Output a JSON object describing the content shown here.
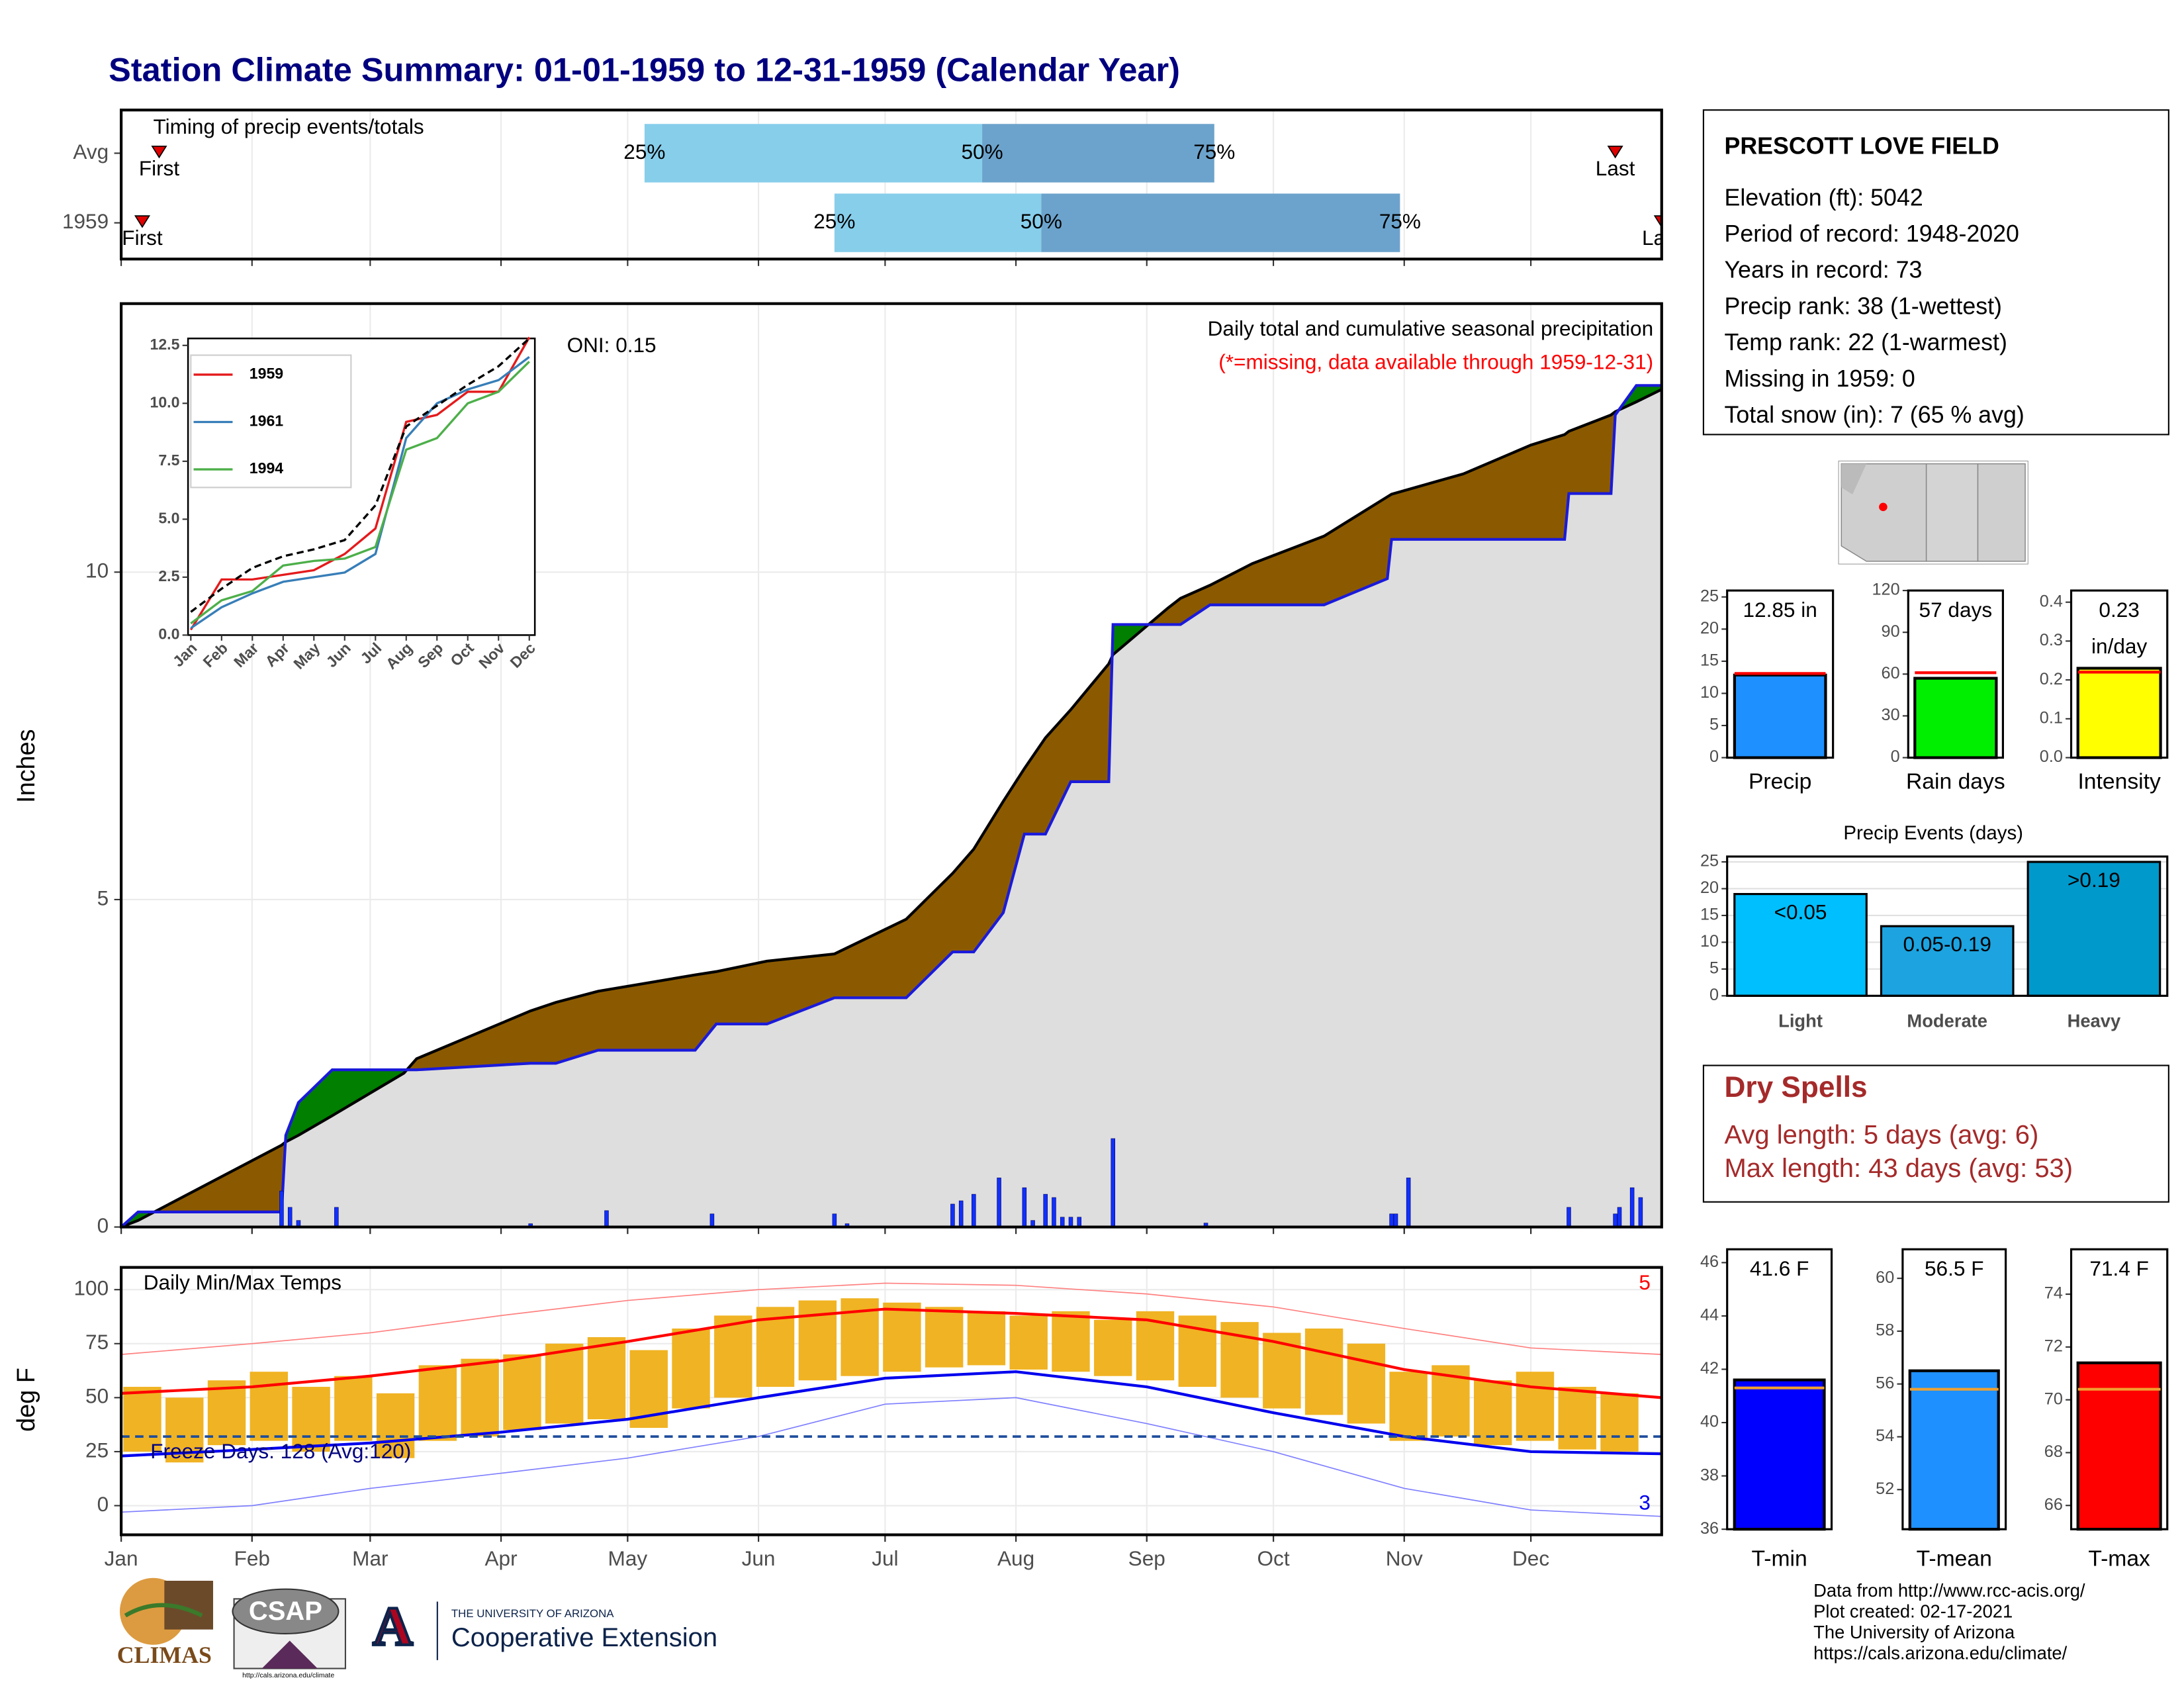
{
  "title": "Station Climate Summary: 01-01-1959 to 12-31-1959 (Calendar Year)",
  "station": {
    "name": "PRESCOTT LOVE FIELD",
    "lines": [
      "Elevation (ft): 5042",
      "Period of record: 1948-2020",
      "Years in record: 73",
      "Precip rank: 38 (1-wettest)",
      "Temp rank: 22 (1-warmest)",
      "Missing in 1959: 0",
      "Total snow (in): 7 (65 % avg)"
    ]
  },
  "dry_spells": {
    "title": "Dry Spells",
    "lines": [
      "Avg length: 5 days (avg: 6)",
      "Max length: 43 days (avg: 53)"
    ]
  },
  "footer": [
    "Data from http://www.rcc-acis.org/",
    "Plot created: 02-17-2021",
    "The University of Arizona",
    "https://cals.arizona.edu/climate/"
  ],
  "logos": {
    "climas": "CLIMAS",
    "csap": "CSAP",
    "csap_url": "http://cals.arizona.edu/climate",
    "arizona_mark": "A",
    "university": "THE UNIVERSITY OF ARIZONA",
    "extension": "Cooperative Extension"
  },
  "chart_data": [
    {
      "type": "timing",
      "title": "Timing of precip events/totals",
      "xlim": [
        0,
        365
      ],
      "colors": [
        "#87ceeb",
        "#6ca3cc"
      ],
      "marker_color": "#e00000",
      "labels": {
        "first": "First",
        "last": "Last",
        "p25": "25%",
        "p50": "50%",
        "p75": "75%"
      },
      "rows": [
        {
          "name": "Avg",
          "first": 9,
          "last": 354,
          "p25": 124,
          "p50": 204,
          "p75": 259
        },
        {
          "name": "1959",
          "first": 5,
          "last": 365,
          "p25": 169,
          "p50": 218,
          "p75": 303
        }
      ]
    },
    {
      "type": "area",
      "annotation_left": "ONI: 0.15",
      "annotation": "Daily total and cumulative seasonal precipitation",
      "note": "(*=missing, data available through 1959-12-31)",
      "ylabel": "Inches",
      "xlim": [
        0,
        365
      ],
      "ylim": [
        0,
        14.1
      ],
      "yticks": [
        0,
        5,
        10
      ],
      "grid": true,
      "fill_below": "#8b5a00",
      "fill_above": "#007f00",
      "fill_base": "#dedede",
      "x": [
        0,
        4,
        38,
        39,
        42,
        50,
        67,
        70,
        97,
        103,
        113,
        136,
        141,
        153,
        169,
        186,
        197,
        202,
        209,
        214,
        219,
        225,
        234,
        235,
        248,
        251,
        258,
        268,
        285,
        300,
        301,
        318,
        334,
        342,
        343,
        353,
        354,
        359,
        365
      ],
      "series": [
        {
          "color": "#000000",
          "values": [
            0,
            0.1,
            1.25,
            1.3,
            1.4,
            1.7,
            2.35,
            2.57,
            3.3,
            3.43,
            3.6,
            3.85,
            3.9,
            4.06,
            4.17,
            4.7,
            5.4,
            5.77,
            6.5,
            7.0,
            7.47,
            7.9,
            8.6,
            8.74,
            9.45,
            9.6,
            9.8,
            10.13,
            10.55,
            11.15,
            11.19,
            11.5,
            11.94,
            12.1,
            12.15,
            12.4,
            12.45,
            12.6,
            12.79
          ]
        },
        {
          "color": "#1a1adb",
          "values": [
            0,
            0.23,
            0.23,
            1.4,
            1.9,
            2.4,
            2.4,
            2.4,
            2.5,
            2.5,
            2.7,
            2.7,
            3.1,
            3.1,
            3.5,
            3.5,
            4.2,
            4.2,
            4.8,
            6.0,
            6.0,
            6.8,
            6.8,
            9.2,
            9.2,
            9.2,
            9.5,
            9.5,
            9.5,
            9.9,
            10.5,
            10.5,
            10.5,
            10.5,
            11.2,
            11.2,
            12.4,
            12.85,
            12.85
          ]
        }
      ],
      "daily": {
        "color": "#1030ff",
        "x": [
          38,
          40,
          42,
          51,
          97,
          115,
          140,
          169,
          172,
          197,
          199,
          202,
          208,
          214,
          216,
          219,
          221,
          223,
          225,
          227,
          235,
          257,
          301,
          302,
          305,
          343,
          354,
          355,
          358,
          360
        ],
        "values": [
          0.55,
          0.3,
          0.1,
          0.3,
          0.05,
          0.25,
          0.2,
          0.2,
          0.05,
          0.35,
          0.4,
          0.5,
          0.75,
          0.6,
          0.1,
          0.5,
          0.45,
          0.15,
          0.15,
          0.15,
          1.35,
          0.06,
          0.2,
          0.2,
          0.75,
          0.3,
          0.2,
          0.3,
          0.6,
          0.45
        ]
      }
    },
    {
      "type": "line",
      "categories": [
        "Jan",
        "Feb",
        "Mar",
        "Apr",
        "May",
        "Jun",
        "Jul",
        "Aug",
        "Sep",
        "Oct",
        "Nov",
        "Dec"
      ],
      "ylim": [
        0,
        12.8
      ],
      "yticks": [
        {
          "value": 0,
          "label": "0.0"
        },
        {
          "value": 2.5,
          "label": "2.5"
        },
        {
          "value": 5,
          "label": "5.0"
        },
        {
          "value": 7.5,
          "label": "7.5"
        },
        {
          "value": 10,
          "label": "10.0"
        },
        {
          "value": 12.5,
          "label": "12.5"
        }
      ],
      "series": [
        {
          "name": "1959",
          "color": "#e41a1c",
          "values": [
            0.23,
            2.4,
            2.4,
            2.6,
            2.8,
            3.5,
            4.6,
            9.2,
            9.5,
            10.5,
            10.5,
            12.85
          ]
        },
        {
          "name": "1961",
          "color": "#377eb8",
          "values": [
            0.3,
            1.2,
            1.8,
            2.3,
            2.5,
            2.7,
            3.5,
            8.5,
            10,
            10.6,
            11,
            12
          ]
        },
        {
          "name": "1994",
          "color": "#4daf4a",
          "values": [
            0.5,
            1.5,
            1.9,
            3.0,
            3.2,
            3.3,
            3.8,
            8.0,
            8.5,
            10,
            10.5,
            11.8
          ]
        },
        {
          "color": "#000000",
          "dash": true,
          "values": [
            1.0,
            2.0,
            2.9,
            3.4,
            3.7,
            4.1,
            5.6,
            9.0,
            9.9,
            10.8,
            11.6,
            12.8
          ]
        }
      ]
    },
    {
      "type": "range",
      "title": "Daily Min/Max Temps",
      "freeze_note": "Freeze Days: 128 (Avg:120)",
      "ylabel": "deg F",
      "count_high": 5,
      "count_low": 3,
      "xlim": [
        0,
        365
      ],
      "ylim": [
        -13.5,
        110.3
      ],
      "yticks": [
        0,
        25,
        50,
        75,
        100
      ],
      "freeze_line": 32,
      "freeze_color": "#1f4e9c",
      "xticks": [
        {
          "value": 0,
          "label": "Jan"
        },
        {
          "value": 31,
          "label": "Feb"
        },
        {
          "value": 59,
          "label": "Mar"
        },
        {
          "value": 90,
          "label": "Apr"
        },
        {
          "value": 120,
          "label": "May"
        },
        {
          "value": 151,
          "label": "Jun"
        },
        {
          "value": 181,
          "label": "Jul"
        },
        {
          "value": 212,
          "label": "Aug"
        },
        {
          "value": 243,
          "label": "Sep"
        },
        {
          "value": 273,
          "label": "Oct"
        },
        {
          "value": 304,
          "label": "Nov"
        },
        {
          "value": 334,
          "label": "Dec"
        }
      ],
      "x": [
        0,
        31,
        59,
        90,
        120,
        151,
        181,
        212,
        243,
        273,
        304,
        334,
        365
      ],
      "series": [
        {
          "color": "#ff0000",
          "width": 2,
          "values": [
            52,
            55,
            60,
            67,
            76,
            86,
            91,
            89,
            86,
            76,
            63,
            55,
            50
          ]
        },
        {
          "color": "#0000ee",
          "width": 2,
          "values": [
            23,
            26,
            29,
            34,
            40,
            50,
            59,
            62,
            55,
            43,
            32,
            25,
            24
          ]
        },
        {
          "color": "#ff8080",
          "width": 0.8,
          "values": [
            70,
            75,
            80,
            88,
            95,
            100,
            103,
            102,
            98,
            92,
            82,
            73,
            70
          ]
        },
        {
          "color": "#7f7fff",
          "width": 0.8,
          "values": [
            -3,
            0,
            8,
            15,
            22,
            32,
            47,
            50,
            38,
            25,
            8,
            -2,
            -5
          ]
        }
      ],
      "bars": {
        "color": "#f0b323",
        "x": [
          5,
          15,
          25,
          35,
          45,
          55,
          65,
          75,
          85,
          95,
          105,
          115,
          125,
          135,
          145,
          155,
          165,
          175,
          185,
          195,
          205,
          215,
          225,
          235,
          245,
          255,
          265,
          275,
          285,
          295,
          305,
          315,
          325,
          335,
          345,
          355
        ],
        "high": [
          55,
          50,
          58,
          62,
          55,
          60,
          52,
          65,
          68,
          70,
          75,
          78,
          72,
          82,
          88,
          92,
          95,
          96,
          94,
          92,
          90,
          88,
          90,
          86,
          90,
          88,
          85,
          80,
          82,
          75,
          62,
          65,
          58,
          62,
          55,
          52
        ],
        "low": [
          25,
          20,
          28,
          30,
          25,
          30,
          22,
          30,
          32,
          35,
          38,
          40,
          36,
          45,
          50,
          55,
          58,
          60,
          62,
          64,
          65,
          63,
          62,
          60,
          58,
          55,
          50,
          45,
          42,
          38,
          30,
          32,
          28,
          30,
          26,
          25
        ]
      }
    },
    {
      "type": "bar",
      "categories": [
        "Precip"
      ],
      "values": [
        12.85
      ],
      "value_labels": [
        "12.85 in"
      ],
      "avg": 13.1,
      "color": "#1e90ff",
      "avg_color": "#ff0000",
      "ylim": [
        0,
        26
      ],
      "yticks": [
        0,
        5,
        10,
        15,
        20,
        25
      ]
    },
    {
      "type": "bar",
      "categories": [
        "Rain days"
      ],
      "values": [
        57
      ],
      "value_labels": [
        "57 days"
      ],
      "avg": 61,
      "color": "#00ee00",
      "avg_color": "#ff0000",
      "ylim": [
        0,
        120
      ],
      "yticks": [
        0,
        30,
        60,
        90,
        120
      ]
    },
    {
      "type": "bar",
      "categories": [
        "Intensity"
      ],
      "values": [
        0.23
      ],
      "value_labels": [
        "0.23 in/day"
      ],
      "avg": 0.22,
      "color": "#ffff00",
      "avg_color": "#ff0000",
      "ylim": [
        0,
        0.43
      ],
      "yticks": [
        {
          "value": 0,
          "label": "0.0"
        },
        {
          "value": 0.1,
          "label": "0.1"
        },
        {
          "value": 0.2,
          "label": "0.2"
        },
        {
          "value": 0.3,
          "label": "0.3"
        },
        {
          "value": 0.4,
          "label": "0.4"
        }
      ]
    },
    {
      "type": "bar",
      "title": "Precip Events (days)",
      "categories": [
        "Light",
        "Moderate",
        "Heavy"
      ],
      "values": [
        19,
        13,
        25
      ],
      "bin_labels": [
        "<0.05",
        "0.05-0.19",
        ">0.19"
      ],
      "colors": [
        "#00bfff",
        "#1ca3e0",
        "#0099cc"
      ],
      "ylim": [
        0,
        26
      ],
      "yticks": [
        0,
        5,
        10,
        15,
        20,
        25
      ],
      "grid": true
    },
    {
      "type": "bar",
      "categories": [
        "T-min"
      ],
      "values": [
        41.6
      ],
      "value_labels": [
        "41.6 F"
      ],
      "avg": 41.3,
      "color": "#0000ff",
      "avg_color": "#f0a030",
      "ylim": [
        36,
        46.5
      ],
      "yticks": [
        36,
        38,
        40,
        42,
        44,
        46
      ]
    },
    {
      "type": "bar",
      "categories": [
        "T-mean"
      ],
      "values": [
        56.5
      ],
      "value_labels": [
        "56.5 F"
      ],
      "avg": 55.8,
      "color": "#1e90ff",
      "avg_color": "#f0a030",
      "ylim": [
        50.5,
        61.1
      ],
      "yticks": [
        52,
        54,
        56,
        58,
        60
      ]
    },
    {
      "type": "bar",
      "categories": [
        "T-max"
      ],
      "values": [
        71.4
      ],
      "value_labels": [
        "71.4 F"
      ],
      "avg": 70.4,
      "color": "#ff0000",
      "avg_color": "#f0a030",
      "ylim": [
        65.1,
        75.7
      ],
      "yticks": [
        66,
        68,
        70,
        72,
        74
      ]
    }
  ]
}
